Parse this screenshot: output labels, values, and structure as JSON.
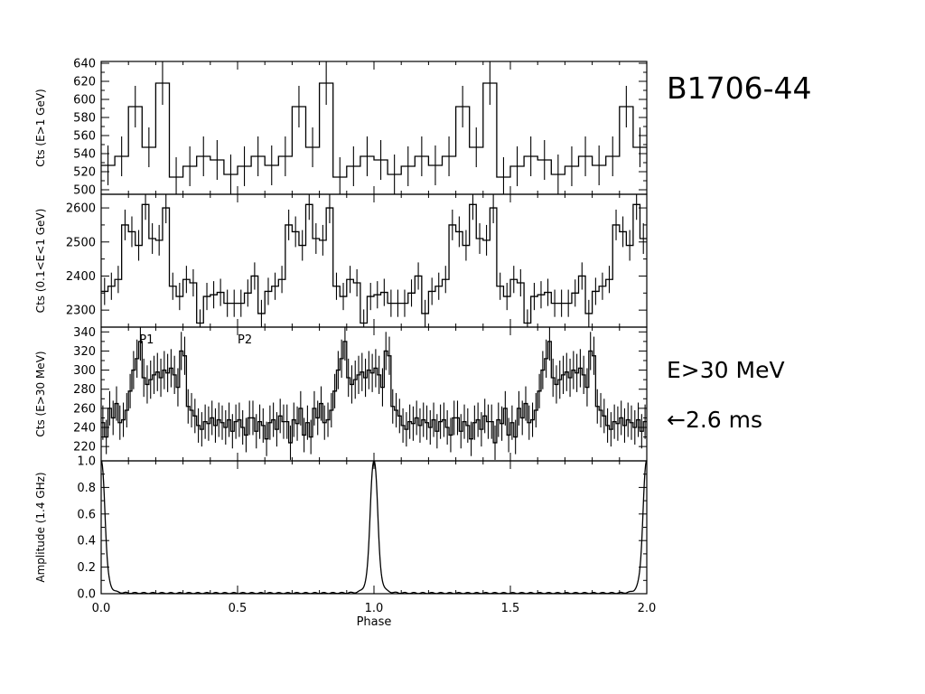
{
  "title": "B1706-44",
  "annotations": {
    "energy": "E>30 MeV",
    "pulse_width": "←2.6 ms"
  },
  "chart_data": {
    "type": "line",
    "layout": "four vertically stacked panels sharing the x axis",
    "xlabel": "Phase",
    "xlim": [
      0,
      2
    ],
    "xticks": [
      "0.0",
      "0.5",
      "1.0",
      "1.5",
      "2.0"
    ],
    "panels": [
      {
        "style": "histogram",
        "ylabel": "Cts (E>1 GeV)",
        "ylim": [
          495,
          642
        ],
        "yticks": [
          500,
          520,
          540,
          560,
          580,
          600,
          620,
          640
        ],
        "bin_width": 0.05,
        "values": [
          527,
          537,
          592,
          547,
          618,
          514,
          526,
          537,
          533,
          517,
          526,
          537
        ],
        "errors": [
          22,
          22,
          23,
          22,
          24,
          22,
          22,
          22,
          22,
          22,
          22,
          22
        ]
      },
      {
        "style": "histogram",
        "ylabel": "Cts (0.1<E<1 GeV)",
        "ylim": [
          2250,
          2640
        ],
        "yticks": [
          2300,
          2400,
          2500,
          2600
        ],
        "bin_width": 0.025,
        "values": [
          2355,
          2370,
          2390,
          2550,
          2530,
          2490,
          2610,
          2510,
          2505,
          2600,
          2370,
          2340,
          2390,
          2380,
          2262,
          2340,
          2345,
          2352,
          2320,
          2320,
          2320,
          2350,
          2400,
          2290
        ],
        "errors": [
          40,
          40,
          40,
          45,
          45,
          45,
          45,
          45,
          45,
          45,
          40,
          40,
          40,
          40,
          40,
          40,
          40,
          40,
          40,
          40,
          40,
          40,
          40,
          40
        ]
      },
      {
        "style": "histogram",
        "ylabel": "Cts (E>30 MeV)",
        "ylim": [
          205,
          345
        ],
        "yticks": [
          220,
          240,
          260,
          280,
          300,
          320,
          340
        ],
        "bin_width": 0.0125,
        "values": [
          245,
          230,
          260,
          250,
          265,
          245,
          248,
          258,
          278,
          300,
          312,
          330,
          292,
          285,
          290,
          295,
          298,
          292,
          300,
          297,
          302,
          295,
          282,
          320,
          315,
          262,
          258,
          252,
          242,
          238,
          246,
          244,
          250,
          242,
          248,
          245,
          240,
          248,
          236,
          246,
          248,
          240,
          232,
          250,
          250,
          236,
          246,
          242,
          228,
          245,
          248,
          238,
          252,
          246,
          246,
          224,
          248,
          244,
          260,
          232
        ],
        "errors": [
          18,
          18,
          18,
          18,
          18,
          18,
          18,
          18,
          18,
          20,
          20,
          20,
          20,
          20,
          20,
          20,
          20,
          20,
          20,
          20,
          20,
          20,
          20,
          20,
          20,
          18,
          18,
          18,
          18,
          18,
          18,
          18,
          18,
          18,
          18,
          18,
          18,
          18,
          18,
          18,
          18,
          18,
          18,
          18,
          18,
          18,
          18,
          18,
          18,
          18,
          18,
          18,
          18,
          18,
          18,
          18,
          18,
          18,
          18,
          18
        ],
        "labels": [
          {
            "text": "P1",
            "x": 0.14,
            "y": 328
          },
          {
            "text": "P2",
            "x": 0.5,
            "y": 328
          }
        ]
      },
      {
        "style": "line",
        "ylabel": "Amplitude (1.4 GHz)",
        "ylim": [
          0,
          1.0
        ],
        "yticks": [
          0.0,
          0.2,
          0.4,
          0.6,
          0.8,
          1.0
        ],
        "ytick_labels": [
          "0.0",
          "0.2",
          "0.4",
          "0.6",
          "0.8",
          "1.0"
        ],
        "shape": "narrow Lorentzian-like pulse peaking at 1.0, repeating every 1.0 in phase",
        "peak_phases": [
          0.0,
          1.0,
          2.0
        ],
        "peak_amplitude": 1.0,
        "baseline": 0.005
      }
    ]
  }
}
